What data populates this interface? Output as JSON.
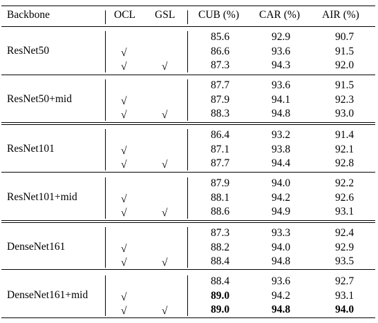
{
  "headers": {
    "backbone": "Backbone",
    "ocl": "OCL",
    "gsl": "GSL",
    "cub": "CUB (%)",
    "car": "CAR (%)",
    "air": "AIR (%)"
  },
  "check_mark": "√",
  "groups": [
    {
      "backbone": "ResNet50",
      "rows": [
        {
          "ocl": false,
          "gsl": false,
          "cub": "85.6",
          "car": "92.9",
          "air": "90.7"
        },
        {
          "ocl": true,
          "gsl": false,
          "cub": "86.6",
          "car": "93.6",
          "air": "91.5"
        },
        {
          "ocl": true,
          "gsl": true,
          "cub": "87.3",
          "car": "94.3",
          "air": "92.0"
        }
      ]
    },
    {
      "backbone": "ResNet50+mid",
      "rows": [
        {
          "ocl": false,
          "gsl": false,
          "cub": "87.7",
          "car": "93.6",
          "air": "91.5"
        },
        {
          "ocl": true,
          "gsl": false,
          "cub": "87.9",
          "car": "94.1",
          "air": "92.3"
        },
        {
          "ocl": true,
          "gsl": true,
          "cub": "88.3",
          "car": "94.8",
          "air": "93.0"
        }
      ]
    },
    {
      "backbone": "ResNet101",
      "rows": [
        {
          "ocl": false,
          "gsl": false,
          "cub": "86.4",
          "car": "93.2",
          "air": "91.4"
        },
        {
          "ocl": true,
          "gsl": false,
          "cub": "87.1",
          "car": "93.8",
          "air": "92.1"
        },
        {
          "ocl": true,
          "gsl": true,
          "cub": "87.7",
          "car": "94.4",
          "air": "92.8"
        }
      ]
    },
    {
      "backbone": "ResNet101+mid",
      "rows": [
        {
          "ocl": false,
          "gsl": false,
          "cub": "87.9",
          "car": "94.0",
          "air": "92.2"
        },
        {
          "ocl": true,
          "gsl": false,
          "cub": "88.1",
          "car": "94.2",
          "air": "92.6"
        },
        {
          "ocl": true,
          "gsl": true,
          "cub": "88.6",
          "car": "94.9",
          "air": "93.1"
        }
      ]
    },
    {
      "backbone": "DenseNet161",
      "rows": [
        {
          "ocl": false,
          "gsl": false,
          "cub": "87.3",
          "car": "93.3",
          "air": "92.4"
        },
        {
          "ocl": true,
          "gsl": false,
          "cub": "88.2",
          "car": "94.0",
          "air": "92.9"
        },
        {
          "ocl": true,
          "gsl": true,
          "cub": "88.4",
          "car": "94.8",
          "air": "93.5"
        }
      ]
    },
    {
      "backbone": "DenseNet161+mid",
      "rows": [
        {
          "ocl": false,
          "gsl": false,
          "cub": "88.4",
          "car": "93.6",
          "air": "92.7"
        },
        {
          "ocl": true,
          "gsl": false,
          "cub": "89.0",
          "car": "94.2",
          "air": "93.1",
          "bold": [
            "cub"
          ]
        },
        {
          "ocl": true,
          "gsl": true,
          "cub": "89.0",
          "car": "94.8",
          "air": "94.0",
          "bold": [
            "cub",
            "car",
            "air"
          ]
        }
      ]
    }
  ]
}
